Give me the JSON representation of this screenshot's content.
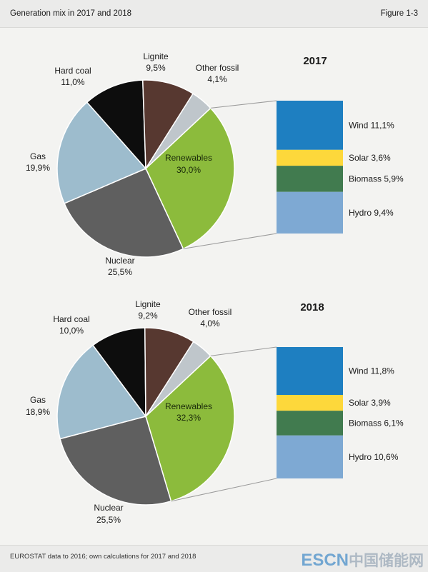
{
  "header": {
    "title": "Generation mix in 2017 and 2018",
    "figure": "Figure 1-3"
  },
  "footer": {
    "source": "EUROSTAT data to 2016; own calculations for 2017 and 2018"
  },
  "watermark": {
    "latin": "ESCN",
    "cn": "中国储能网"
  },
  "colors": {
    "Renewables": "#8cbb3c",
    "Nuclear": "#5f5f5f",
    "Gas": "#9dbccd",
    "Hard coal": "#0d0d0d",
    "Lignite": "#573830",
    "Other fossil": "#bfc6cb",
    "Wind": "#1e7fc1",
    "Solar": "#fdd83b",
    "Biomass": "#417b4f",
    "Hydro": "#7ea9d3"
  },
  "chart_data": [
    {
      "type": "pie",
      "title": "2017",
      "slices": [
        {
          "label": "Renewables",
          "value": 30.0,
          "text": "30,0%"
        },
        {
          "label": "Nuclear",
          "value": 25.5,
          "text": "25,5%"
        },
        {
          "label": "Gas",
          "value": 19.9,
          "text": "19,9%"
        },
        {
          "label": "Hard coal",
          "value": 11.0,
          "text": "11,0%"
        },
        {
          "label": "Lignite",
          "value": 9.5,
          "text": "9,5%"
        },
        {
          "label": "Other fossil",
          "value": 4.1,
          "text": "4,1%"
        }
      ],
      "breakdown": {
        "of": "Renewables",
        "parts": [
          {
            "label": "Wind",
            "value": 11.1,
            "text": "11,1%"
          },
          {
            "label": "Solar",
            "value": 3.6,
            "text": "3,6%"
          },
          {
            "label": "Biomass",
            "value": 5.9,
            "text": "5,9%"
          },
          {
            "label": "Hydro",
            "value": 9.4,
            "text": "9,4%"
          }
        ]
      }
    },
    {
      "type": "pie",
      "title": "2018",
      "slices": [
        {
          "label": "Renewables",
          "value": 32.3,
          "text": "32,3%"
        },
        {
          "label": "Nuclear",
          "value": 25.5,
          "text": "25,5%"
        },
        {
          "label": "Gas",
          "value": 18.9,
          "text": "18,9%"
        },
        {
          "label": "Hard coal",
          "value": 10.0,
          "text": "10,0%"
        },
        {
          "label": "Lignite",
          "value": 9.2,
          "text": "9,2%"
        },
        {
          "label": "Other fossil",
          "value": 4.0,
          "text": "4,0%"
        }
      ],
      "breakdown": {
        "of": "Renewables",
        "parts": [
          {
            "label": "Wind",
            "value": 11.8,
            "text": "11,8%"
          },
          {
            "label": "Solar",
            "value": 3.9,
            "text": "3,9%"
          },
          {
            "label": "Biomass",
            "value": 6.1,
            "text": "6,1%"
          },
          {
            "label": "Hydro",
            "value": 10.6,
            "text": "10,6%"
          }
        ]
      }
    }
  ]
}
